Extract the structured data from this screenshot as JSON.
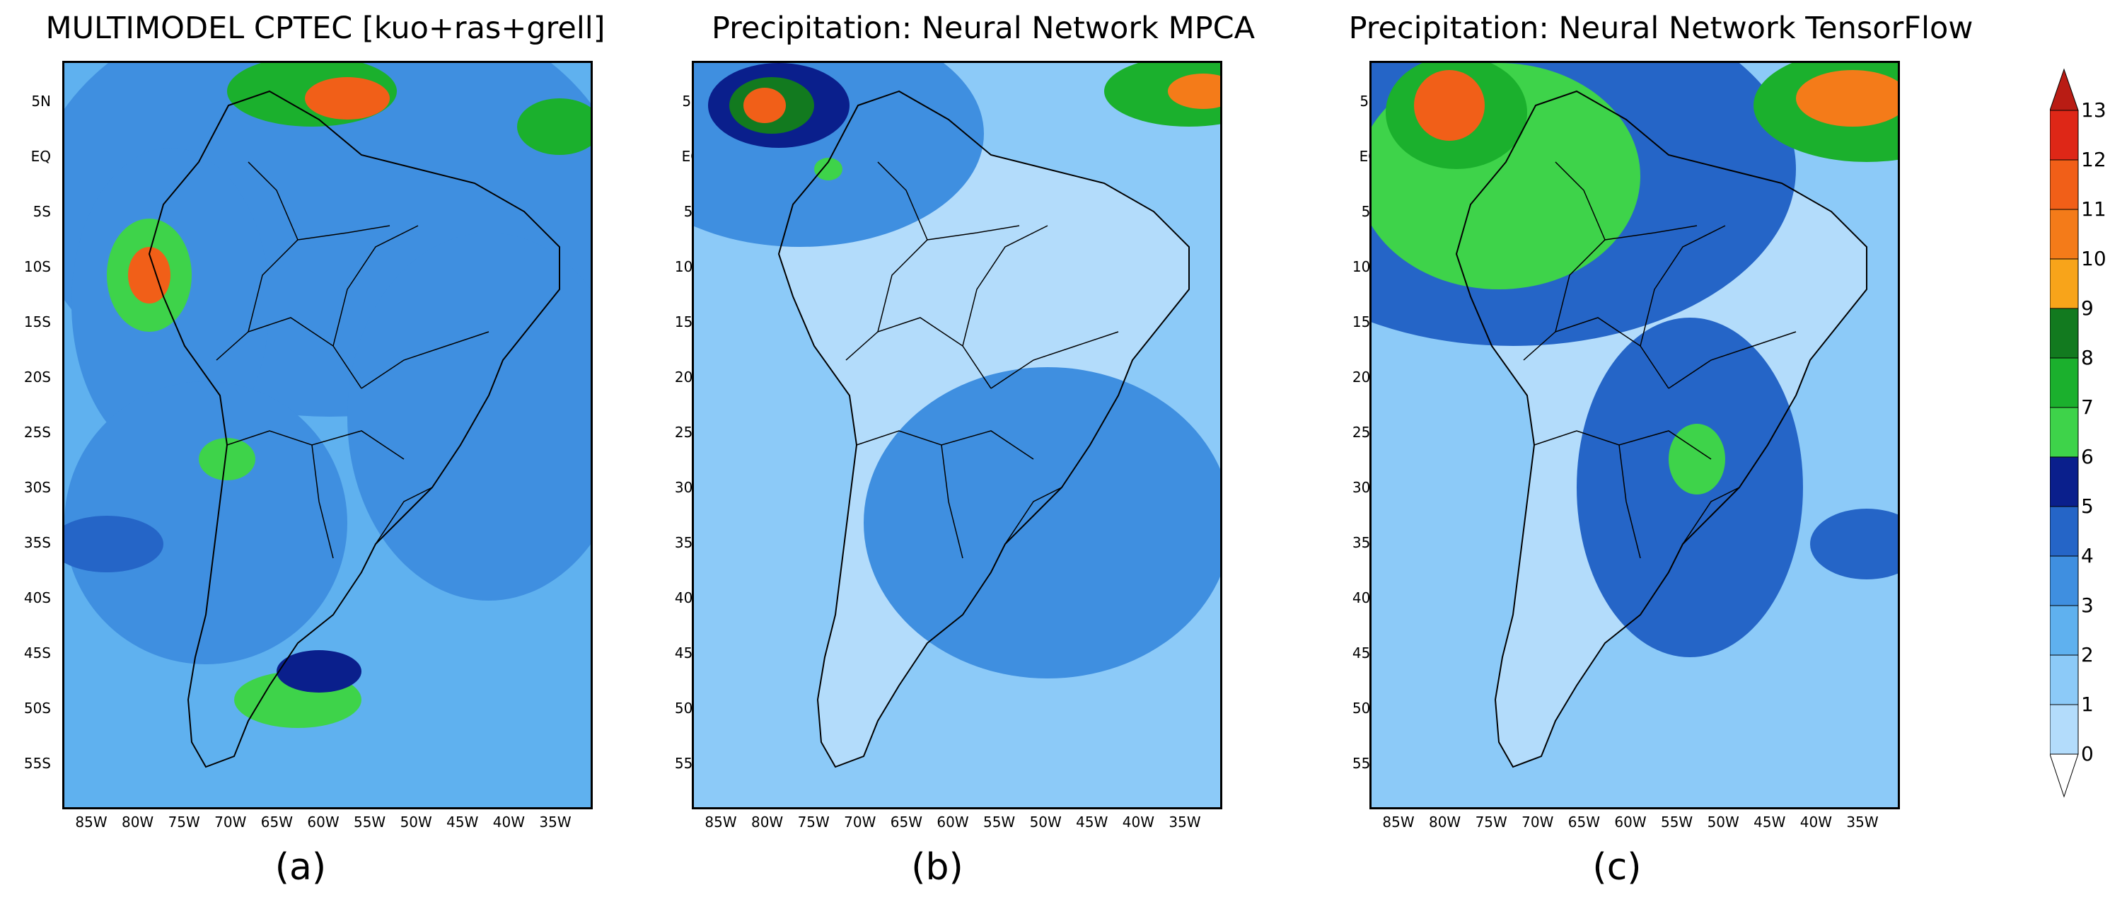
{
  "panels": [
    {
      "title": "MULTIMODEL CPTEC [kuo+ras+grell]",
      "caption": "(a)"
    },
    {
      "title": "Precipitation: Neural Network MPCA",
      "caption": "(b)"
    },
    {
      "title": "Precipitation: Neural Network TensorFlow",
      "caption": "(c)"
    }
  ],
  "lat_labels": [
    "5N",
    "EQ",
    "5S",
    "10S",
    "15S",
    "20S",
    "25S",
    "30S",
    "35S",
    "40S",
    "45S",
    "50S",
    "55S"
  ],
  "lon_labels": [
    "85W",
    "80W",
    "75W",
    "70W",
    "65W",
    "60W",
    "55W",
    "50W",
    "45W",
    "40W",
    "35W"
  ],
  "colorbar": {
    "labels": [
      "0",
      "1",
      "2",
      "3",
      "4",
      "5",
      "6",
      "7",
      "8",
      "9",
      "10",
      "11",
      "12",
      "13"
    ],
    "colors": [
      "#ffffff",
      "#b3dcfb",
      "#8ccaf8",
      "#5fb1ef",
      "#3f8fe0",
      "#2565c7",
      "#0a1f8c",
      "#3ed34a",
      "#1bb02d",
      "#127a1f",
      "#f8a41a",
      "#f47b19",
      "#f15f18",
      "#de2717",
      "#b91c14"
    ]
  }
}
